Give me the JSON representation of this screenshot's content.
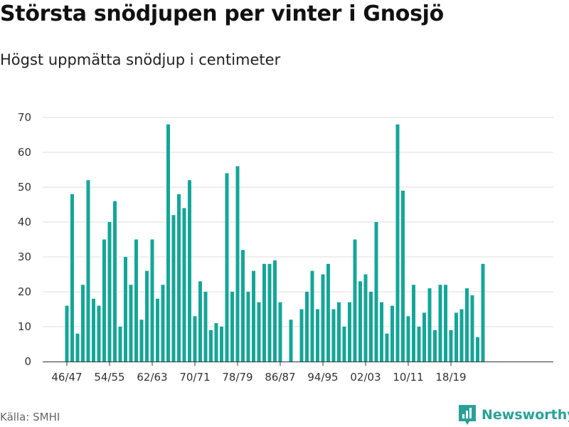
{
  "title": "Största snödjupen per vinter i Gnosjö",
  "subtitle": "Högst uppmätta snödjup i centimeter",
  "source": "Källa: SMHI",
  "brand": {
    "name": "Newsworthy",
    "icon": "bar-chart-logo-icon"
  },
  "colors": {
    "bar": "#14a69a",
    "grid": "#dddddd",
    "axis": "#333333",
    "brand": "#2aa198"
  },
  "chart_data": {
    "type": "bar",
    "categories": [
      "46/47",
      "47/48",
      "48/49",
      "49/50",
      "50/51",
      "51/52",
      "52/53",
      "53/54",
      "54/55",
      "55/56",
      "56/57",
      "57/58",
      "58/59",
      "59/60",
      "60/61",
      "61/62",
      "62/63",
      "63/64",
      "64/65",
      "65/66",
      "66/67",
      "67/68",
      "68/69",
      "69/70",
      "70/71",
      "71/72",
      "72/73",
      "73/74",
      "74/75",
      "75/76",
      "76/77",
      "77/78",
      "78/79",
      "79/80",
      "80/81",
      "81/82",
      "82/83",
      "83/84",
      "84/85",
      "85/86",
      "86/87",
      "87/88",
      "88/89",
      "89/90",
      "90/91",
      "91/92",
      "92/93",
      "93/94",
      "94/95",
      "95/96",
      "96/97",
      "97/98",
      "98/99",
      "99/00",
      "00/01",
      "01/02",
      "02/03",
      "03/04",
      "04/05",
      "05/06",
      "06/07",
      "07/08",
      "08/09",
      "09/10",
      "10/11",
      "11/12",
      "12/13",
      "13/14",
      "14/15",
      "15/16",
      "16/17",
      "17/18",
      "18/19",
      "19/20",
      "20/21",
      "21/22",
      "22/23",
      "23/24",
      "24/25",
      "25/26",
      "26/27",
      "27/28"
    ],
    "values": [
      16,
      48,
      8,
      22,
      52,
      18,
      16,
      35,
      40,
      46,
      10,
      30,
      22,
      35,
      12,
      26,
      35,
      18,
      22,
      68,
      42,
      48,
      44,
      52,
      13,
      23,
      20,
      9,
      11,
      10,
      54,
      20,
      56,
      32,
      20,
      26,
      17,
      28,
      28,
      29,
      17,
      null,
      12,
      null,
      15,
      20,
      26,
      15,
      25,
      28,
      15,
      17,
      10,
      17,
      35,
      23,
      25,
      20,
      40,
      17,
      8,
      16,
      68,
      49,
      13,
      22,
      10,
      14,
      21,
      9,
      22,
      22,
      9,
      14,
      15,
      21,
      19,
      7,
      28,
      null,
      null,
      null
    ],
    "x_tick_labels": [
      "46/47",
      "54/55",
      "62/63",
      "70/71",
      "78/79",
      "86/87",
      "94/95",
      "02/03",
      "10/11",
      "18/19"
    ],
    "y_ticks": [
      0,
      10,
      20,
      30,
      40,
      50,
      60,
      70
    ],
    "ylim": [
      0,
      70
    ],
    "xlabel": "",
    "ylabel": "",
    "grid": true,
    "legend": "none"
  }
}
